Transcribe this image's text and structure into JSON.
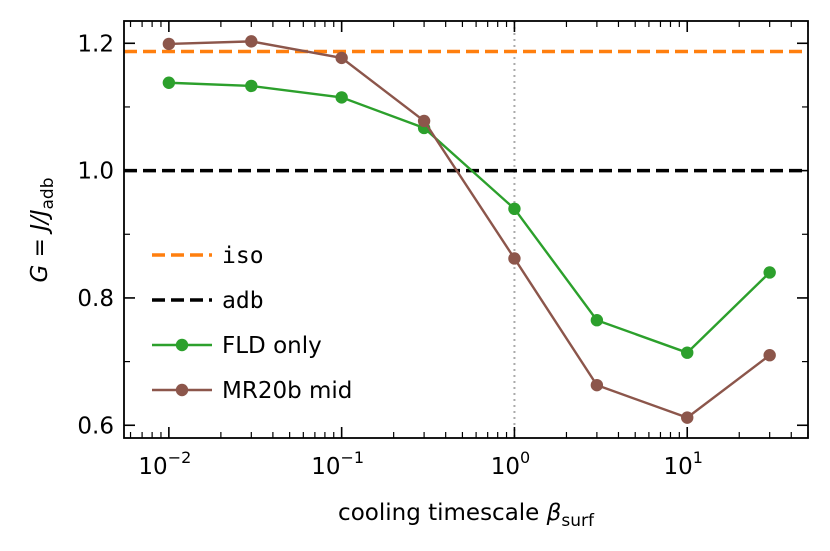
{
  "chart_data": {
    "type": "line",
    "xscale": "log",
    "xlim": [
      0.0055,
      50
    ],
    "ylim": [
      0.58,
      1.235
    ],
    "xlabel": "cooling timescale",
    "xlabel_symbol": "β",
    "xlabel_sub": "surf",
    "ylabel_prefix": "G = J/J",
    "ylabel_sub": "adb",
    "x_ticks": [
      {
        "value": 0.01,
        "base": "10",
        "exp": "−2"
      },
      {
        "value": 0.1,
        "base": "10",
        "exp": "−1"
      },
      {
        "value": 1,
        "base": "10",
        "exp": "0"
      },
      {
        "value": 10,
        "base": "10",
        "exp": "1"
      }
    ],
    "y_ticks": [
      {
        "value": 0.6,
        "label": "0.6"
      },
      {
        "value": 0.8,
        "label": "0.8"
      },
      {
        "value": 1.0,
        "label": "1.0"
      },
      {
        "value": 1.2,
        "label": "1.2"
      }
    ],
    "y_minor_ticks": [
      0.7,
      0.9,
      1.1
    ],
    "vline": {
      "x": 1,
      "color": "#aaaaaa",
      "style": "dotted"
    },
    "hlines": [
      {
        "name": "iso",
        "y": 1.187,
        "color": "#ff7f0e",
        "style": "dashed"
      },
      {
        "name": "adb",
        "y": 1.0,
        "color": "#000000",
        "style": "dashed"
      }
    ],
    "series": [
      {
        "name": "FLD only",
        "color": "#2ca02c",
        "x": [
          0.01,
          0.03,
          0.1,
          0.3,
          1,
          3,
          10,
          30
        ],
        "values": [
          1.138,
          1.133,
          1.115,
          1.067,
          0.94,
          0.765,
          0.714,
          0.84
        ]
      },
      {
        "name": "MR20b mid",
        "color": "#8c564b",
        "x": [
          0.01,
          0.03,
          0.1,
          0.3,
          1,
          3,
          10,
          30
        ],
        "values": [
          1.199,
          1.203,
          1.177,
          1.078,
          0.862,
          0.663,
          0.612,
          0.71
        ]
      }
    ],
    "legend": {
      "position": "lower-left",
      "entries": [
        {
          "label": "iso",
          "kind": "dashed",
          "color": "#ff7f0e",
          "mono": true
        },
        {
          "label": "adb",
          "kind": "dashed",
          "color": "#000000",
          "mono": true
        },
        {
          "label": "FLD only",
          "kind": "marker-line",
          "color": "#2ca02c",
          "mono": false
        },
        {
          "label": "MR20b mid",
          "kind": "marker-line",
          "color": "#8c564b",
          "mono": false
        }
      ]
    }
  }
}
